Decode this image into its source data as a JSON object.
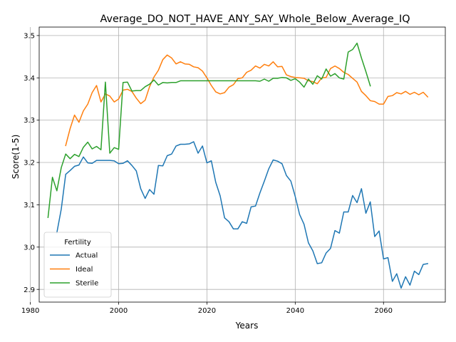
{
  "chart_data": {
    "type": "line",
    "title": "Average_DO_NOT_HAVE_ANY_SAY_Whole_Below_Average_IQ",
    "xlabel": "Years",
    "ylabel": "Score(1-5)",
    "xlim": [
      1982,
      2074
    ],
    "ylim": [
      2.87,
      3.52
    ],
    "xticks": [
      1980,
      2000,
      2020,
      2040,
      2060
    ],
    "yticks": [
      2.9,
      3.0,
      3.1,
      3.2,
      3.3,
      3.4,
      3.5
    ],
    "xtick_labels": [
      "1980",
      "2000",
      "2020",
      "2040",
      "2060"
    ],
    "ytick_labels": [
      "2.9",
      "3.0",
      "3.1",
      "3.2",
      "3.3",
      "3.4",
      "3.5"
    ],
    "grid": true,
    "legend": {
      "title": "Fertility",
      "placement": "lower-left"
    },
    "series": [
      {
        "name": "Actual",
        "color": "#1f77b4",
        "start_year": 1986,
        "values": [
          3.034,
          3.09,
          3.172,
          3.181,
          3.191,
          3.194,
          3.213,
          3.199,
          3.198,
          3.205,
          3.205,
          3.205,
          3.205,
          3.204,
          3.197,
          3.198,
          3.204,
          3.193,
          3.18,
          3.138,
          3.115,
          3.136,
          3.125,
          3.193,
          3.192,
          3.216,
          3.22,
          3.239,
          3.243,
          3.243,
          3.244,
          3.249,
          3.222,
          3.239,
          3.199,
          3.204,
          3.153,
          3.121,
          3.069,
          3.06,
          3.043,
          3.043,
          3.06,
          3.056,
          3.095,
          3.097,
          3.128,
          3.156,
          3.185,
          3.206,
          3.203,
          3.197,
          3.169,
          3.156,
          3.12,
          3.077,
          3.054,
          3.01,
          2.991,
          2.961,
          2.963,
          2.986,
          2.997,
          3.039,
          3.033,
          3.083,
          3.083,
          3.122,
          3.105,
          3.138,
          3.08,
          3.107,
          3.025,
          3.038,
          2.972,
          2.975,
          2.919,
          2.937,
          2.903,
          2.93,
          2.91,
          2.943,
          2.935,
          2.959,
          2.961
        ]
      },
      {
        "name": "Ideal",
        "color": "#ff7f0e",
        "start_year": 1988,
        "values": [
          3.24,
          3.28,
          3.312,
          3.295,
          3.322,
          3.338,
          3.365,
          3.382,
          3.343,
          3.362,
          3.357,
          3.343,
          3.35,
          3.371,
          3.373,
          3.368,
          3.352,
          3.339,
          3.347,
          3.379,
          3.402,
          3.418,
          3.443,
          3.454,
          3.447,
          3.433,
          3.438,
          3.433,
          3.432,
          3.426,
          3.424,
          3.416,
          3.4,
          3.382,
          3.367,
          3.362,
          3.365,
          3.378,
          3.384,
          3.398,
          3.4,
          3.413,
          3.418,
          3.428,
          3.423,
          3.432,
          3.428,
          3.438,
          3.426,
          3.427,
          3.407,
          3.403,
          3.401,
          3.4,
          3.399,
          3.393,
          3.391,
          3.386,
          3.4,
          3.401,
          3.422,
          3.428,
          3.422,
          3.413,
          3.408,
          3.399,
          3.39,
          3.368,
          3.358,
          3.346,
          3.344,
          3.338,
          3.338,
          3.356,
          3.358,
          3.365,
          3.362,
          3.368,
          3.361,
          3.366,
          3.36,
          3.366,
          3.355
        ]
      },
      {
        "name": "Sterile",
        "color": "#2ca02c",
        "start_year": 1984,
        "values": [
          3.07,
          3.165,
          3.133,
          3.188,
          3.22,
          3.209,
          3.219,
          3.214,
          3.236,
          3.248,
          3.232,
          3.238,
          3.23,
          3.39,
          3.222,
          3.235,
          3.231,
          3.389,
          3.39,
          3.369,
          3.37,
          3.37,
          3.379,
          3.385,
          3.395,
          3.383,
          3.389,
          3.388,
          3.389,
          3.389,
          3.393,
          3.393,
          3.393,
          3.393,
          3.393,
          3.393,
          3.393,
          3.393,
          3.393,
          3.393,
          3.393,
          3.393,
          3.393,
          3.393,
          3.393,
          3.393,
          3.393,
          3.393,
          3.392,
          3.397,
          3.392,
          3.399,
          3.399,
          3.401,
          3.4,
          3.394,
          3.398,
          3.39,
          3.378,
          3.397,
          3.385,
          3.405,
          3.397,
          3.421,
          3.404,
          3.41,
          3.4,
          3.397,
          3.461,
          3.467,
          3.482,
          3.447,
          3.415,
          3.381
        ]
      }
    ]
  }
}
